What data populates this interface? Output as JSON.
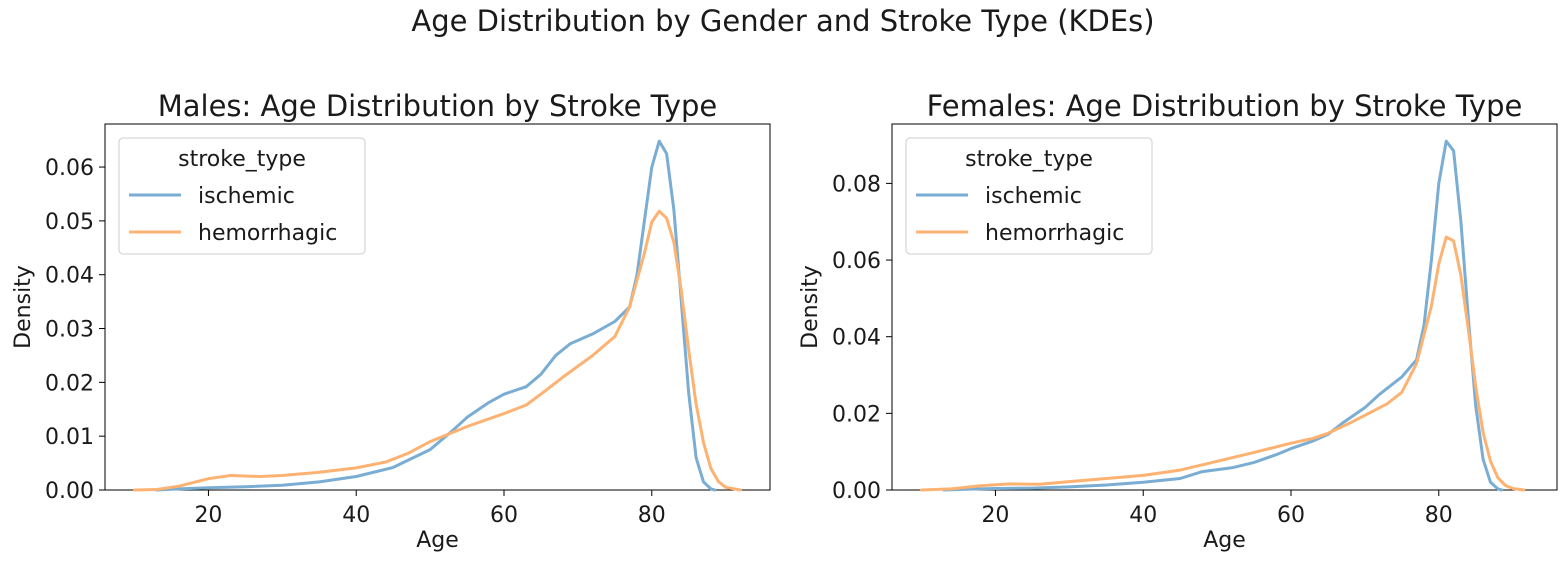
{
  "figure": {
    "suptitle": "Age Distribution by Gender and Stroke Type (KDEs)"
  },
  "colors": {
    "ischemic": "#7aadd3",
    "hemorrhagic": "#fdb272"
  },
  "chart_data": [
    {
      "type": "line",
      "title": "Males: Age Distribution by Stroke Type",
      "xlabel": "Age",
      "ylabel": "Density",
      "xlim": [
        6,
        96
      ],
      "ylim": [
        0,
        0.068
      ],
      "xticks": [
        20,
        40,
        60,
        80
      ],
      "yticks": [
        0.0,
        0.01,
        0.02,
        0.03,
        0.04,
        0.05,
        0.06
      ],
      "ytick_labels": [
        "0.00",
        "0.01",
        "0.02",
        "0.03",
        "0.04",
        "0.05",
        "0.06"
      ],
      "legend": {
        "title": "stroke_type",
        "position": "top-left"
      },
      "series": [
        {
          "name": "ischemic",
          "color": "#7aadd3",
          "x": [
            13,
            16,
            20,
            25,
            30,
            35,
            40,
            45,
            50,
            53,
            55,
            58,
            60,
            63,
            65,
            67,
            69,
            72,
            75,
            77,
            78,
            79,
            80,
            81,
            82,
            83,
            84,
            85,
            86,
            87,
            88,
            88.5
          ],
          "y": [
            0.0,
            0.0002,
            0.0004,
            0.0006,
            0.0009,
            0.0015,
            0.0025,
            0.0042,
            0.0075,
            0.011,
            0.0135,
            0.0163,
            0.0178,
            0.0192,
            0.0215,
            0.025,
            0.0272,
            0.029,
            0.0313,
            0.034,
            0.04,
            0.05,
            0.06,
            0.0648,
            0.0625,
            0.052,
            0.035,
            0.018,
            0.006,
            0.0015,
            0.0002,
            0.0
          ]
        },
        {
          "name": "hemorrhagic",
          "color": "#fdb272",
          "x": [
            10,
            13,
            16,
            20,
            23,
            27,
            30,
            35,
            40,
            44,
            47,
            50,
            55,
            60,
            63,
            65,
            68,
            72,
            75,
            77,
            79,
            80,
            81,
            82,
            83,
            84,
            85,
            86,
            87,
            88,
            89,
            90,
            92
          ],
          "y": [
            0.0,
            0.0001,
            0.0007,
            0.0021,
            0.0027,
            0.0025,
            0.0027,
            0.0033,
            0.0041,
            0.0052,
            0.0068,
            0.009,
            0.0118,
            0.0142,
            0.0158,
            0.0178,
            0.021,
            0.025,
            0.0285,
            0.034,
            0.044,
            0.0498,
            0.0518,
            0.0505,
            0.046,
            0.037,
            0.026,
            0.016,
            0.0088,
            0.004,
            0.0016,
            0.0005,
            0.0
          ]
        }
      ]
    },
    {
      "type": "line",
      "title": "Females: Age Distribution by Stroke Type",
      "xlabel": "Age",
      "ylabel": "Density",
      "xlim": [
        6,
        96
      ],
      "ylim": [
        0,
        0.0955
      ],
      "xticks": [
        20,
        40,
        60,
        80
      ],
      "yticks": [
        0.0,
        0.02,
        0.04,
        0.06,
        0.08
      ],
      "ytick_labels": [
        "0.00",
        "0.02",
        "0.04",
        "0.06",
        "0.08"
      ],
      "legend": {
        "title": "stroke_type",
        "position": "top-left"
      },
      "series": [
        {
          "name": "ischemic",
          "color": "#7aadd3",
          "x": [
            13,
            16,
            20,
            25,
            30,
            35,
            40,
            45,
            48,
            52,
            55,
            58,
            60,
            63,
            65,
            67,
            70,
            72,
            75,
            77,
            78,
            79,
            80,
            81,
            82,
            83,
            84,
            85,
            86,
            87,
            88,
            88.5
          ],
          "y": [
            0.0,
            0.0002,
            0.0004,
            0.0005,
            0.0008,
            0.0013,
            0.002,
            0.003,
            0.0048,
            0.0058,
            0.0072,
            0.0092,
            0.0108,
            0.0128,
            0.0145,
            0.0175,
            0.0215,
            0.025,
            0.0295,
            0.034,
            0.043,
            0.06,
            0.08,
            0.091,
            0.0885,
            0.07,
            0.045,
            0.022,
            0.008,
            0.002,
            0.0003,
            0.0
          ]
        },
        {
          "name": "hemorrhagic",
          "color": "#fdb272",
          "x": [
            10,
            14,
            18,
            22,
            26,
            30,
            35,
            40,
            45,
            50,
            55,
            60,
            63,
            65,
            68,
            70,
            73,
            75,
            77,
            79,
            80,
            81,
            82,
            83,
            84,
            85,
            86,
            87,
            88,
            89,
            90,
            91.5
          ],
          "y": [
            0.0,
            0.0003,
            0.0011,
            0.0016,
            0.0015,
            0.0022,
            0.003,
            0.0038,
            0.0052,
            0.0075,
            0.0098,
            0.0122,
            0.0135,
            0.0148,
            0.0175,
            0.0195,
            0.0225,
            0.0255,
            0.033,
            0.048,
            0.059,
            0.066,
            0.065,
            0.056,
            0.042,
            0.027,
            0.015,
            0.0075,
            0.0032,
            0.0012,
            0.0004,
            0.0
          ]
        }
      ]
    }
  ]
}
